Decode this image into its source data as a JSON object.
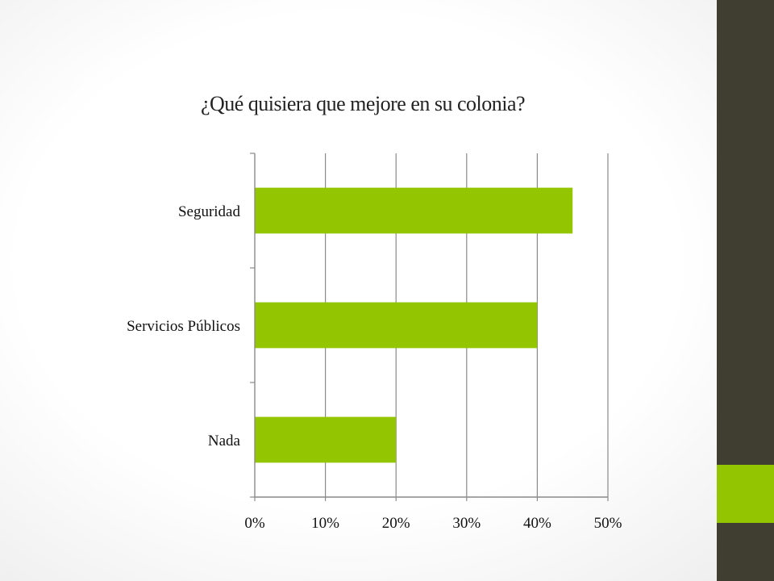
{
  "slide": {
    "title": "¿Qué quisiera que mejore en su colonia?",
    "accent_color": "#94c600",
    "sidebar_color": "#3f3e30"
  },
  "chart_data": {
    "type": "bar",
    "orientation": "horizontal",
    "categories": [
      "Seguridad",
      "Servicios Públicos",
      "Nada"
    ],
    "values": [
      45,
      40,
      20
    ],
    "xlim": [
      0,
      50
    ],
    "xticks": [
      "0%",
      "10%",
      "20%",
      "30%",
      "40%",
      "50%"
    ],
    "grid": true,
    "bar_color": "#94c600"
  }
}
